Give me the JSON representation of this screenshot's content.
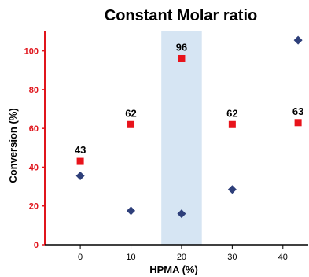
{
  "chart_data": {
    "type": "scatter",
    "title": "Constant Molar ratio",
    "xlabel": "HPMA (%)",
    "ylabel": "Conversion (%)",
    "xlim": [
      -7,
      45
    ],
    "ylim": [
      0,
      110
    ],
    "x_ticks": [
      "0",
      "10",
      "20",
      "30",
      "40"
    ],
    "y_ticks": [
      "0",
      "20",
      "40",
      "60",
      "80",
      "100"
    ],
    "highlight_band": [
      16,
      24
    ],
    "grid": false,
    "legend": "none",
    "colors": {
      "square": "#e8131b",
      "diamond": "#2e3f7a",
      "band": "#d6e5f3",
      "y_axis": "#e0151c",
      "x_axis": "#000000"
    },
    "series": [
      {
        "marker": "square",
        "x": [
          0,
          10,
          20,
          30,
          43
        ],
        "y": [
          43,
          62,
          96,
          62,
          63
        ],
        "labels": [
          "43",
          "62",
          "96",
          "62",
          "63"
        ]
      },
      {
        "marker": "diamond",
        "x": [
          0,
          10,
          20,
          30,
          43
        ],
        "y": [
          35.5,
          17.5,
          16,
          28.5,
          105.5
        ]
      }
    ]
  }
}
